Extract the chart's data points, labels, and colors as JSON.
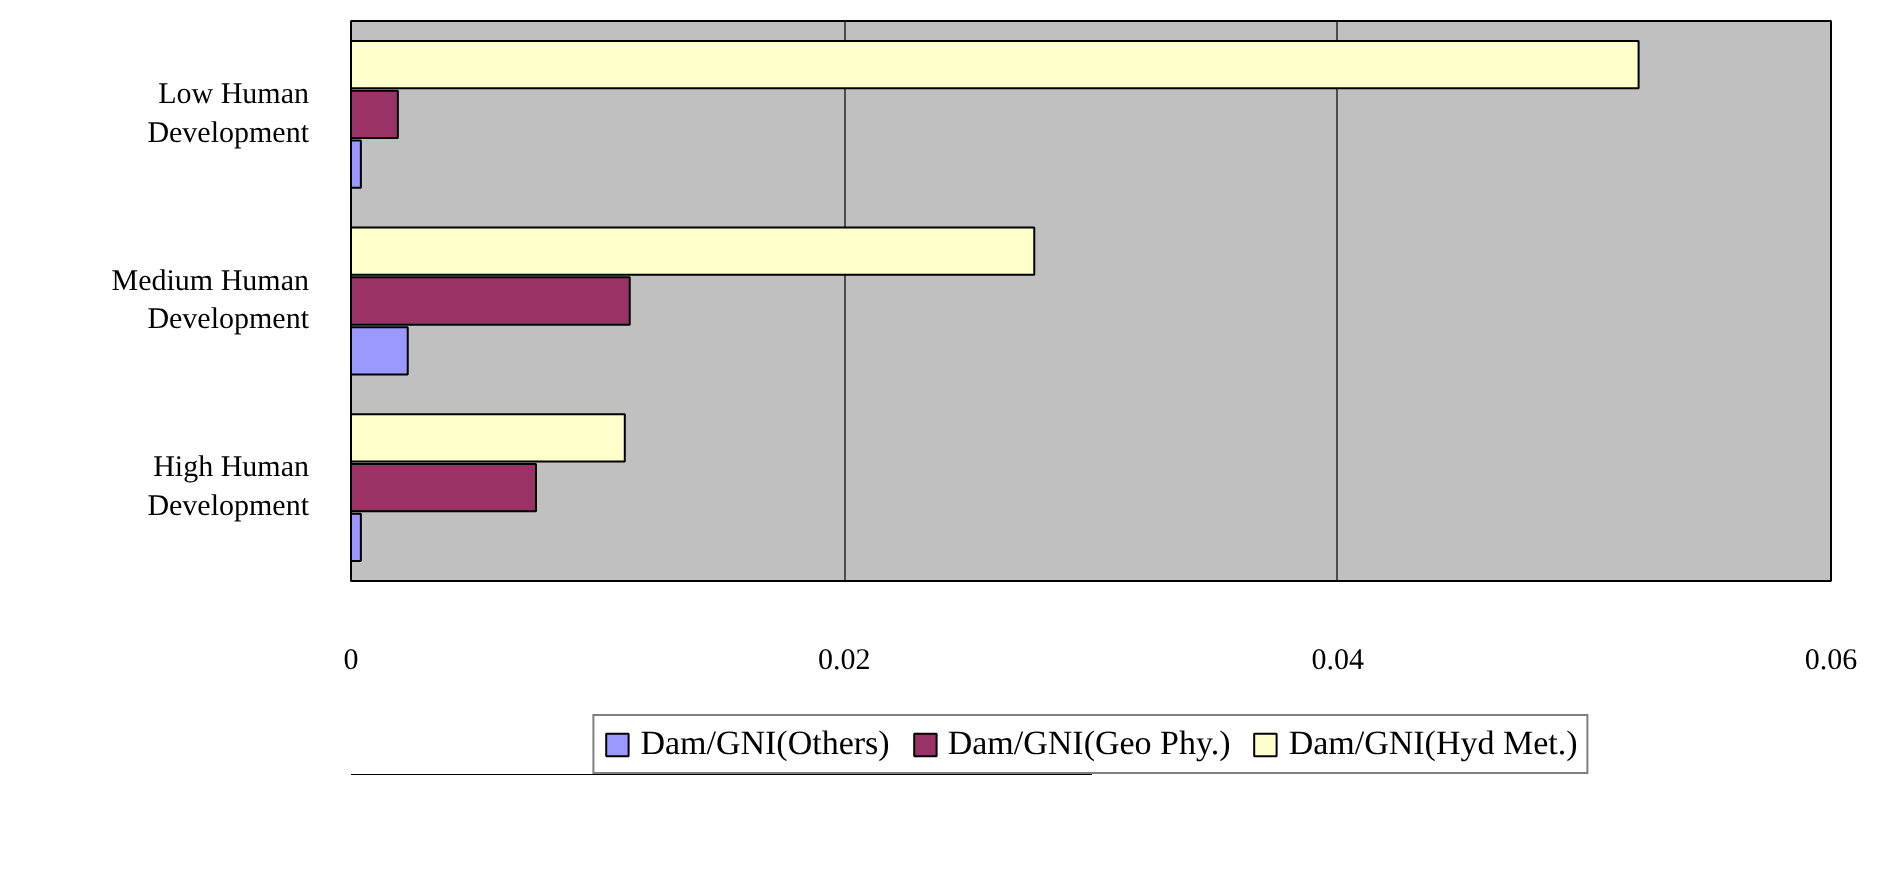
{
  "chart_data": {
    "type": "bar",
    "orientation": "horizontal",
    "categories": [
      "Low Human Development",
      "Medium Human Development",
      "High Human Development"
    ],
    "series": [
      {
        "name": "Dam/GNI(Others)",
        "color": "#9999ff",
        "values": [
          0.0004,
          0.0023,
          0.0004
        ]
      },
      {
        "name": "Dam/GNI(Geo Phy.)",
        "color": "#993366",
        "values": [
          0.0019,
          0.0113,
          0.0075
        ]
      },
      {
        "name": "Dam/GNI(Hyd Met.)",
        "color": "#ffffcc",
        "values": [
          0.0522,
          0.0277,
          0.0111
        ]
      }
    ],
    "xlim": [
      0,
      0.06
    ],
    "xticks": [
      0,
      0.02,
      0.04,
      0.06
    ],
    "grid": "x",
    "legend": "bottom"
  }
}
